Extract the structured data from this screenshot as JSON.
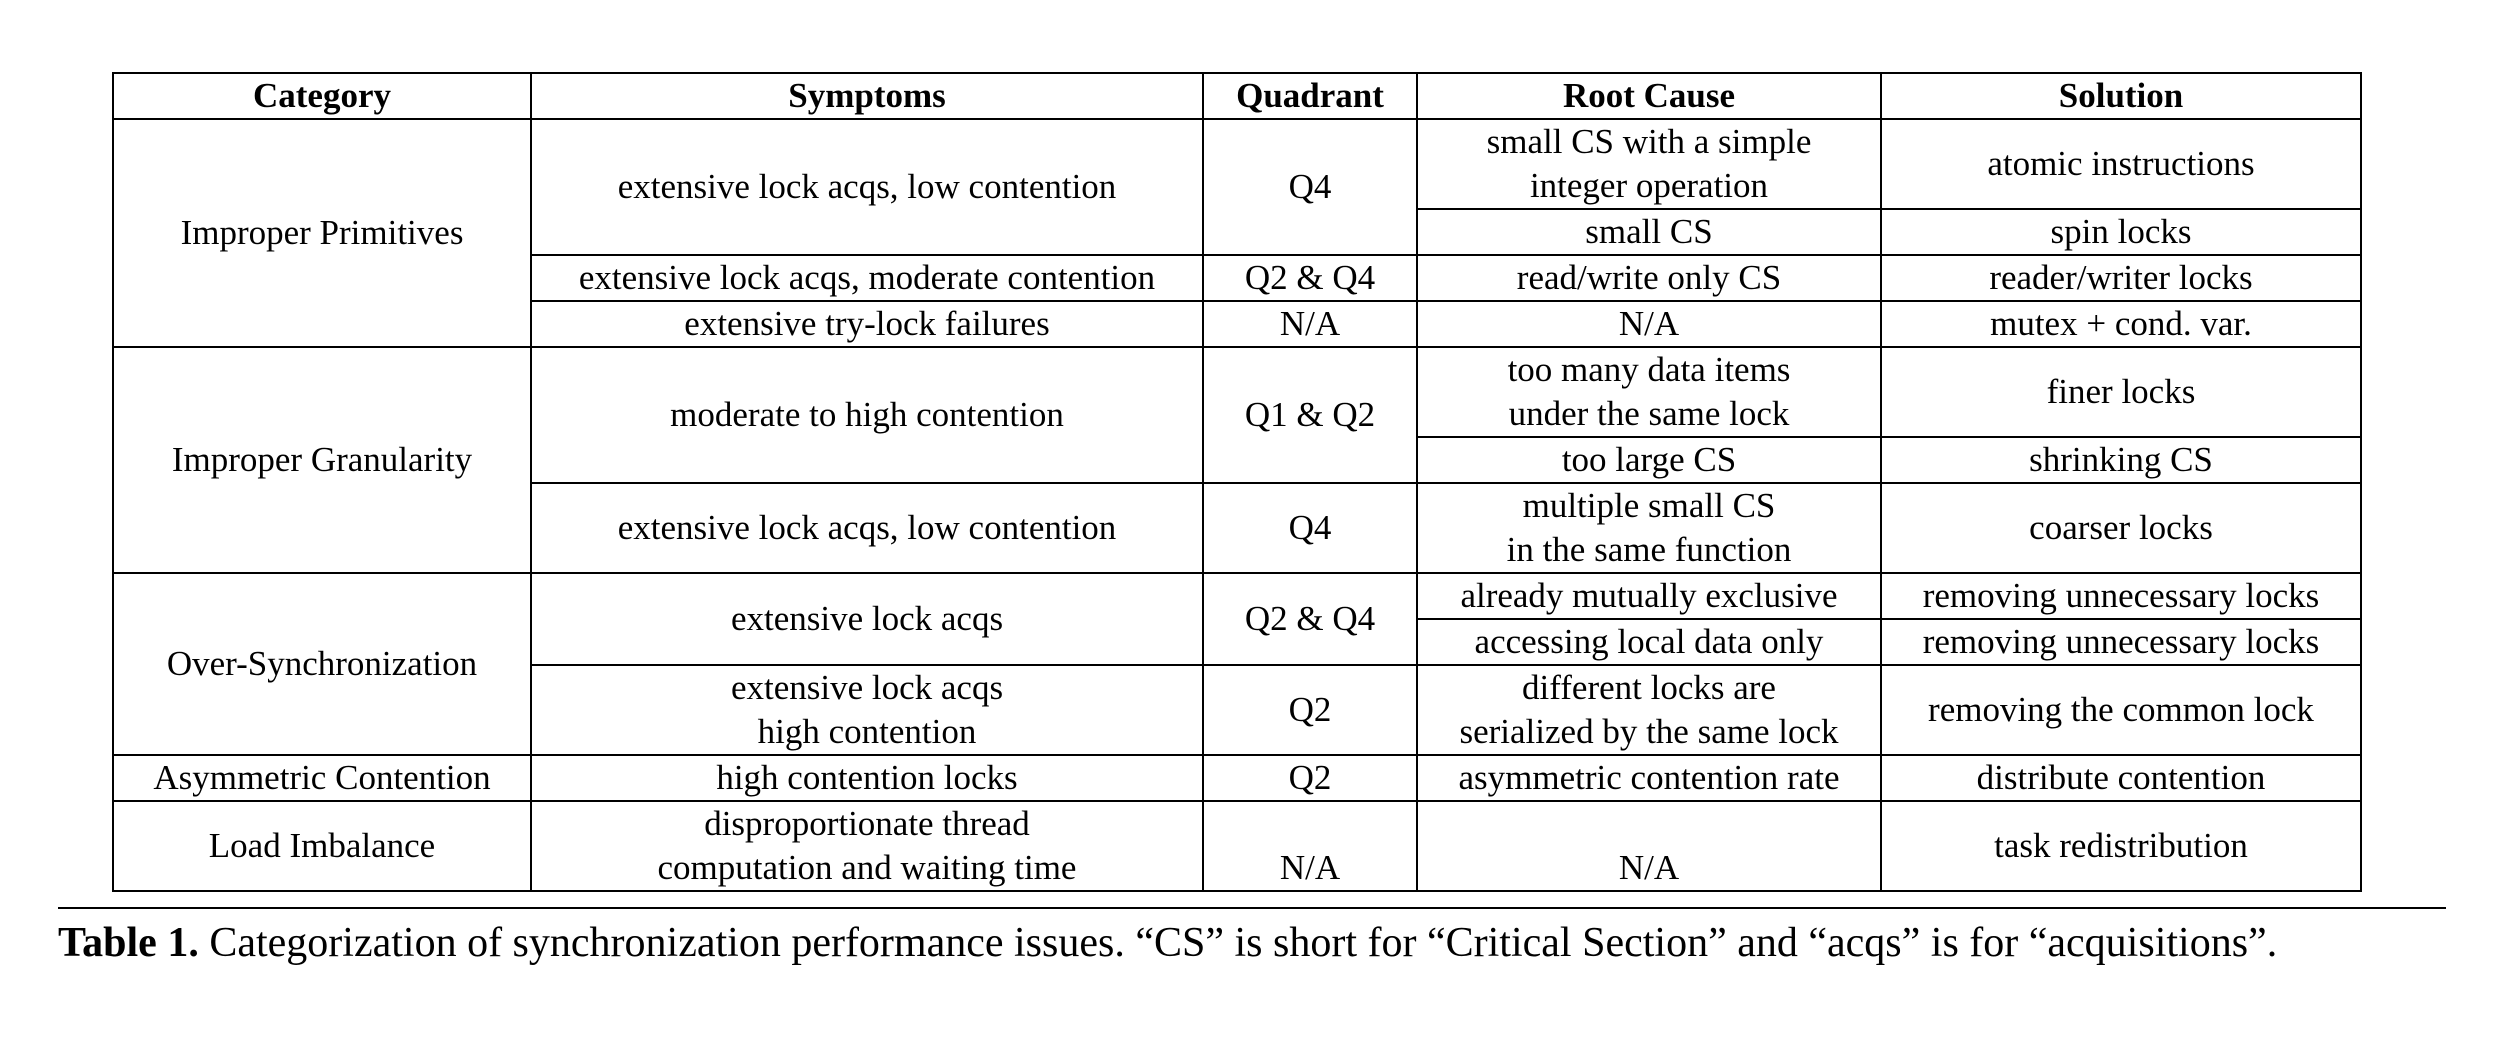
{
  "table": {
    "headers": [
      "Category",
      "Symptoms",
      "Quadrant",
      "Root Cause",
      "Solution"
    ],
    "categories": {
      "improper_primitives": "Improper Primitives",
      "improper_granularity": "Improper Granularity",
      "over_synchronization": "Over-Synchronization",
      "asymmetric_contention": "Asymmetric Contention",
      "load_imbalance": "Load Imbalance"
    },
    "rows": {
      "r1": {
        "symptom": "extensive lock acqs, low contention",
        "quadrant": "Q4",
        "cause_a_line1": "small CS with a simple",
        "cause_a_line2": "integer operation",
        "solution_a": "atomic instructions",
        "cause_b": "small CS",
        "solution_b": "spin locks"
      },
      "r2": {
        "symptom": "extensive lock acqs, moderate contention",
        "quadrant": "Q2 & Q4",
        "cause": "read/write only CS",
        "solution": "reader/writer locks"
      },
      "r3": {
        "symptom": "extensive try-lock failures",
        "quadrant": "N/A",
        "cause": "N/A",
        "solution": "mutex + cond. var."
      },
      "r4": {
        "symptom": "moderate to high contention",
        "quadrant": "Q1 & Q2",
        "cause_a_line1": "too many data items",
        "cause_a_line2": "under the same lock",
        "solution_a": "finer locks",
        "cause_b": "too large CS",
        "solution_b": "shrinking CS"
      },
      "r5": {
        "symptom": "extensive lock acqs, low contention",
        "quadrant": "Q4",
        "cause_line1": "multiple small CS",
        "cause_line2": "in the same function",
        "solution": "coarser locks"
      },
      "r6": {
        "symptom": "extensive lock acqs",
        "quadrant": "Q2 & Q4",
        "cause_a": "already mutually exclusive",
        "solution_a": "removing unnecessary locks",
        "cause_b": "accessing local data only",
        "solution_b": "removing unnecessary locks"
      },
      "r7": {
        "symptom_line1": "extensive lock acqs",
        "symptom_line2": "high contention",
        "quadrant": "Q2",
        "cause_line1": "different locks are",
        "cause_line2": "serialized by the same lock",
        "solution": "removing the common lock"
      },
      "r8": {
        "symptom": "high contention locks",
        "quadrant": "Q2",
        "cause": "asymmetric contention rate",
        "solution": "distribute contention"
      },
      "r9": {
        "symptom_line1": "disproportionate thread",
        "symptom_line2": "computation and waiting time",
        "quadrant": "N/A",
        "cause": "N/A",
        "solution": "task redistribution"
      }
    }
  },
  "caption": {
    "label": "Table 1.",
    "text": "Categorization of synchronization performance issues. “CS” is short for “Critical Section” and “acqs” is for “acquisitions”."
  }
}
